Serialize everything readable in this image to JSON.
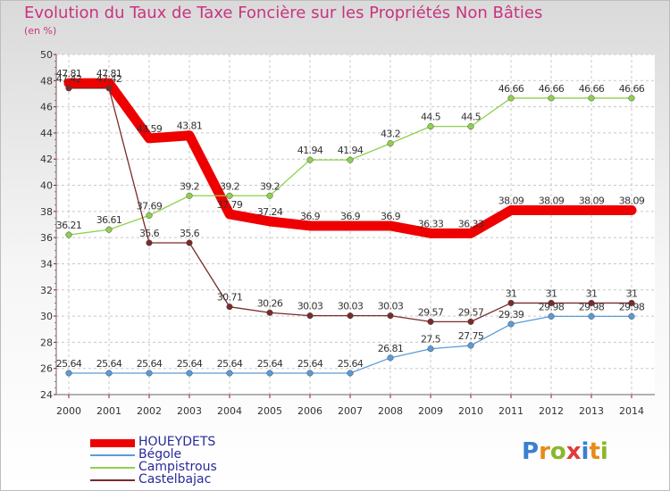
{
  "title": "Evolution du Taux de Taxe Foncière sur les Propriétés Non Bâties",
  "subtitle": "(en %)",
  "logo": "Proxiti",
  "chart_data": {
    "type": "line",
    "x": [
      "2000",
      "2001",
      "2002",
      "2003",
      "2004",
      "2005",
      "2006",
      "2007",
      "2008",
      "2009",
      "2010",
      "2011",
      "2012",
      "2013",
      "2014"
    ],
    "ylim": [
      24,
      50
    ],
    "yticks": [
      24,
      26,
      28,
      30,
      32,
      34,
      36,
      38,
      40,
      42,
      44,
      46,
      48,
      50
    ],
    "grid": true,
    "legend": "bottom-left",
    "series": [
      {
        "name": "HOUEYDETS",
        "color": "#ee0000",
        "values": [
          47.81,
          47.81,
          43.59,
          43.81,
          37.79,
          37.24,
          36.9,
          36.9,
          36.9,
          36.33,
          36.33,
          38.09,
          38.09,
          38.09,
          38.09
        ],
        "labels": [
          "47.81",
          "47.81",
          "43.59",
          "43.81",
          "37.79",
          "37.24",
          "36.9",
          "36.9",
          "36.9",
          "36.33",
          "36.33",
          "38.09",
          "38.09",
          "38.09",
          "38.09"
        ]
      },
      {
        "name": "Bégole",
        "color": "#5b9bd5",
        "values": [
          25.64,
          25.64,
          25.64,
          25.64,
          25.64,
          25.64,
          25.64,
          25.64,
          26.81,
          27.5,
          27.75,
          29.39,
          29.98,
          29.98,
          29.98
        ],
        "labels": [
          "25.64",
          "25.64",
          "25.64",
          "25.64",
          "25.64",
          "25.64",
          "25.64",
          "25.64",
          "26.81",
          "27.5",
          "27.75",
          "29.39",
          "29.98",
          "29.98",
          "29.98"
        ]
      },
      {
        "name": "Campistrous",
        "color": "#8fd14f",
        "values": [
          36.21,
          36.61,
          37.69,
          39.2,
          39.2,
          39.2,
          41.94,
          41.94,
          43.2,
          44.5,
          44.5,
          46.66,
          46.66,
          46.66,
          46.66
        ],
        "labels": [
          "36.21",
          "36.61",
          "37.69",
          "39.2",
          "39.2",
          "39.2",
          "41.94",
          "41.94",
          "43.2",
          "44.5",
          "44.5",
          "46.66",
          "46.66",
          "46.66",
          "46.66"
        ]
      },
      {
        "name": "Castelbajac",
        "color": "#7b2b2b",
        "values": [
          47.42,
          47.42,
          35.6,
          35.6,
          30.71,
          30.26,
          30.03,
          30.03,
          30.03,
          29.57,
          29.57,
          31,
          31,
          31,
          31
        ],
        "labels": [
          "47.42",
          "47.42",
          "35.6",
          "35.6",
          "30.71",
          "30.26",
          "30.03",
          "30.03",
          "30.03",
          "29.57",
          "29.57",
          "31",
          "31",
          "31",
          "31"
        ]
      }
    ]
  }
}
